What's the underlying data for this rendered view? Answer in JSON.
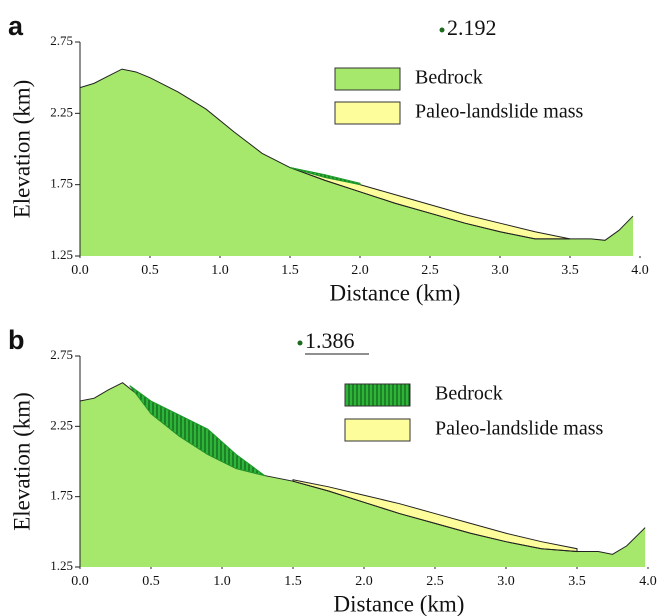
{
  "chart_data": [
    {
      "type": "area",
      "panel": "a",
      "annotation": "2.192",
      "xlabel": "Distance (km)",
      "ylabel": "Elevation (km)",
      "xlim": [
        0,
        4.0
      ],
      "ylim": [
        1.25,
        2.75
      ],
      "xticks": [
        {
          "value": 0,
          "label": "0.0"
        },
        0.5,
        {
          "value": 1,
          "label": "1.0"
        },
        1.5,
        {
          "value": 2,
          "label": "2.0"
        },
        2.5,
        {
          "value": 3,
          "label": "3.0"
        },
        3.5,
        {
          "value": 4,
          "label": "4.0"
        }
      ],
      "yticks": [
        1.25,
        1.75,
        2.25,
        2.75
      ],
      "x": [
        0,
        0.1,
        0.2,
        0.3,
        0.4,
        0.5,
        0.7,
        0.9,
        1.1,
        1.3,
        1.5,
        1.75,
        2.0,
        2.25,
        2.5,
        2.75,
        3.0,
        3.25,
        3.5,
        3.65,
        3.75,
        3.85,
        3.95
      ],
      "series": [
        {
          "name": "Bedrock",
          "color": "#a6e86c",
          "values": [
            2.43,
            2.46,
            2.51,
            2.56,
            2.54,
            2.5,
            2.4,
            2.28,
            2.12,
            1.97,
            1.87,
            1.78,
            1.7,
            1.62,
            1.55,
            1.48,
            1.42,
            1.37,
            1.37,
            1.37,
            1.36,
            1.43,
            1.53
          ]
        },
        {
          "name": "Paleo-landslide mass",
          "color": "#fdfd9c",
          "values": [
            null,
            null,
            null,
            null,
            null,
            null,
            null,
            null,
            null,
            null,
            1.87,
            1.81,
            1.75,
            1.68,
            1.61,
            1.54,
            1.48,
            1.42,
            1.37,
            null,
            null,
            null,
            null
          ]
        }
      ],
      "slip": {
        "color": "#1e9a2a",
        "x": [
          1.5,
          1.75,
          2.0
        ],
        "top": [
          1.87,
          1.82,
          1.76
        ],
        "bottom": [
          1.87,
          1.8,
          1.75
        ]
      }
    },
    {
      "type": "area",
      "panel": "b",
      "annotation": "1.386",
      "xlabel": "Distance (km)",
      "ylabel": "Elevation (km)",
      "xlim": [
        0,
        4.0
      ],
      "ylim": [
        1.25,
        2.75
      ],
      "xticks": [
        {
          "value": 0,
          "label": "0.0"
        },
        0.5,
        {
          "value": 1,
          "label": "1.0"
        },
        1.5,
        {
          "value": 2,
          "label": "2.0"
        },
        2.5,
        {
          "value": 3,
          "label": "3.0"
        },
        3.5,
        {
          "value": 4,
          "label": "4.0"
        }
      ],
      "yticks": [
        1.25,
        1.75,
        2.25,
        2.75
      ],
      "x": [
        0,
        0.1,
        0.2,
        0.3,
        0.4,
        0.5,
        0.7,
        0.9,
        1.1,
        1.3,
        1.5,
        1.75,
        2.0,
        2.25,
        2.5,
        2.75,
        3.0,
        3.25,
        3.5,
        3.65,
        3.75,
        3.85,
        3.98
      ],
      "series": [
        {
          "name": "Bedrock",
          "color": "#a6e86c",
          "values": [
            2.43,
            2.45,
            2.51,
            2.56,
            2.48,
            2.34,
            2.18,
            2.05,
            1.95,
            1.9,
            1.86,
            1.79,
            1.71,
            1.63,
            1.56,
            1.49,
            1.43,
            1.38,
            1.36,
            1.36,
            1.34,
            1.4,
            1.53
          ]
        },
        {
          "name": "Paleo-landslide mass",
          "color": "#fdfd9c",
          "values": [
            null,
            null,
            null,
            null,
            null,
            null,
            null,
            null,
            null,
            null,
            1.87,
            1.82,
            1.76,
            1.7,
            1.63,
            1.56,
            1.49,
            1.43,
            1.38,
            null,
            null,
            null,
            null
          ]
        }
      ],
      "slip": {
        "color": "#1e9a2a",
        "x": [
          0.35,
          0.5,
          0.7,
          0.9,
          1.1,
          1.3
        ],
        "top": [
          2.54,
          2.43,
          2.33,
          2.23,
          2.05,
          1.9
        ],
        "bottom": [
          2.54,
          2.34,
          2.18,
          2.05,
          1.95,
          1.9
        ]
      }
    }
  ]
}
